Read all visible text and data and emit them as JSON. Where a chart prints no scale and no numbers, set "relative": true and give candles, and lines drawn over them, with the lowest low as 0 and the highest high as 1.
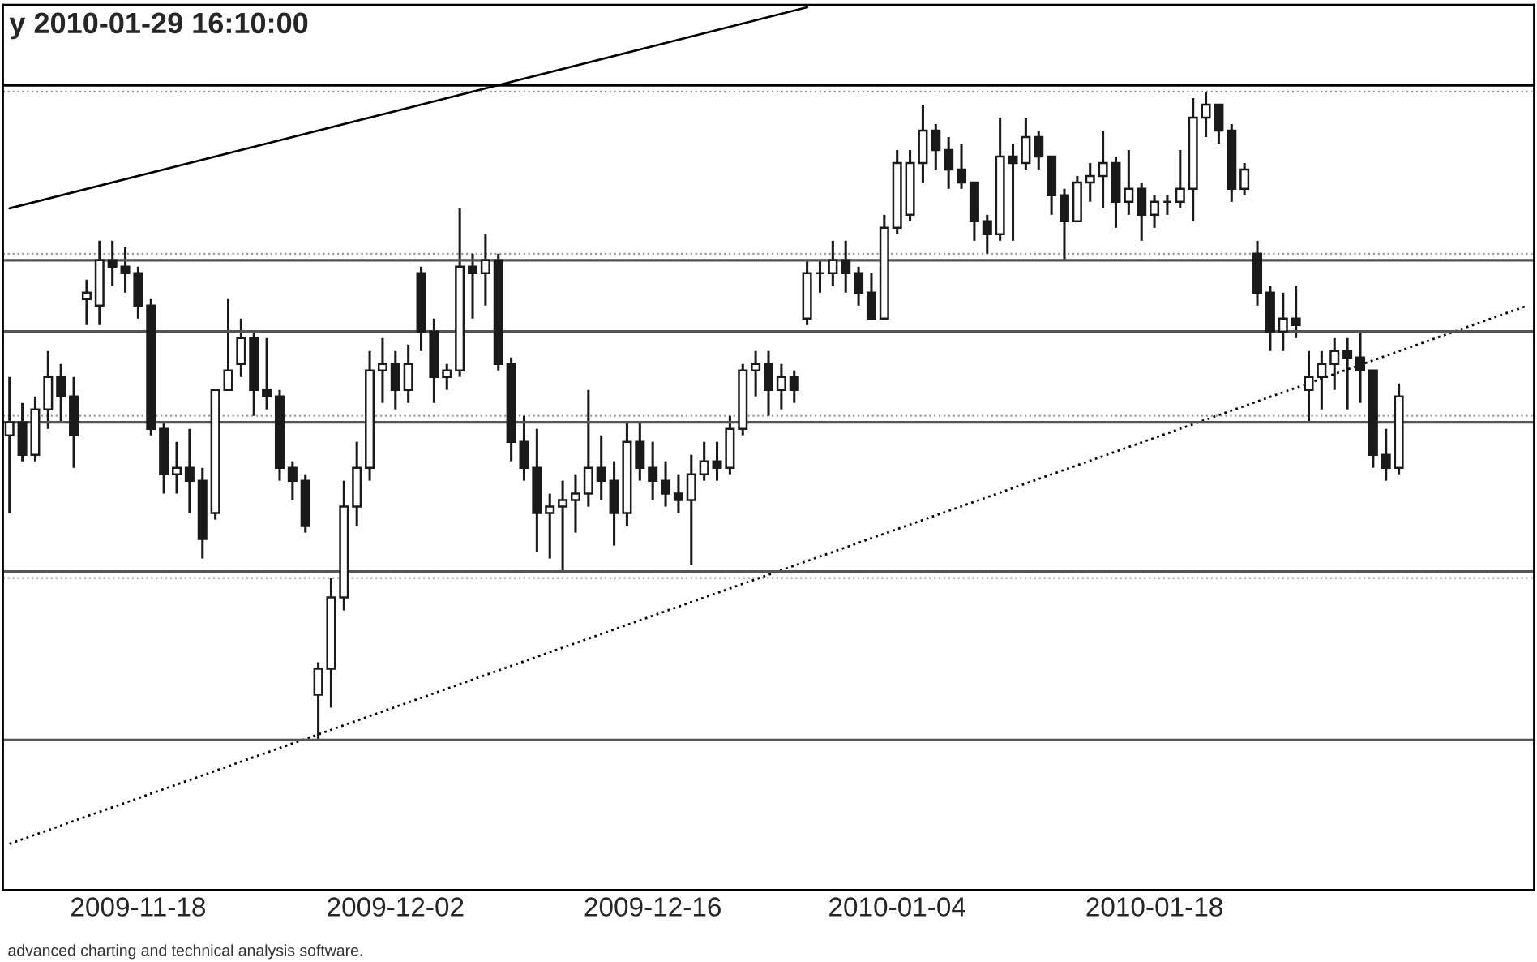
{
  "chart_data": {
    "type": "candlestick",
    "title": "y 2010-01-29 16:10:00",
    "relative": true,
    "color": "#1a1a1a",
    "grid": "y",
    "tick_labels": "x",
    "annotations": [
      "advanced charting and technical analysis software."
    ],
    "categories": [
      null,
      null,
      null,
      null,
      null,
      null,
      null,
      null,
      null,
      null,
      "2009-11-18",
      null,
      null,
      null,
      null,
      null,
      null,
      null,
      null,
      null,
      null,
      null,
      null,
      null,
      null,
      null,
      null,
      null,
      null,
      null,
      "2009-12-02",
      null,
      null,
      null,
      null,
      null,
      null,
      null,
      null,
      null,
      null,
      null,
      null,
      null,
      null,
      null,
      null,
      null,
      null,
      null,
      "2009-12-16",
      null,
      null,
      null,
      null,
      null,
      null,
      null,
      null,
      null,
      null,
      null,
      null,
      null,
      null,
      null,
      null,
      null,
      null,
      "2010-01-04",
      null,
      null,
      null,
      null,
      null,
      null,
      null,
      null,
      null,
      null,
      null,
      null,
      null,
      null,
      null,
      null,
      null,
      null,
      null,
      "2010-01-18",
      null,
      null,
      null,
      null,
      null,
      null,
      null,
      null,
      null,
      null,
      null,
      null,
      null,
      null,
      null,
      null,
      null,
      null,
      null,
      null,
      null,
      null,
      null,
      null,
      null,
      null,
      null,
      null,
      null
    ],
    "ohlc": [
      [
        0.47,
        0.56,
        0.35,
        0.49
      ],
      [
        0.49,
        0.52,
        0.43,
        0.44
      ],
      [
        0.44,
        0.53,
        0.43,
        0.51
      ],
      [
        0.51,
        0.6,
        0.48,
        0.56
      ],
      [
        0.56,
        0.58,
        0.49,
        0.53
      ],
      [
        0.53,
        0.56,
        0.42,
        0.47
      ],
      [
        0.68,
        0.71,
        0.64,
        0.69
      ],
      [
        0.67,
        0.77,
        0.64,
        0.74
      ],
      [
        0.74,
        0.77,
        0.7,
        0.73
      ],
      [
        0.73,
        0.76,
        0.69,
        0.72
      ],
      [
        0.72,
        0.73,
        0.65,
        0.67
      ],
      [
        0.67,
        0.68,
        0.47,
        0.48
      ],
      [
        0.48,
        0.49,
        0.38,
        0.41
      ],
      [
        0.41,
        0.46,
        0.38,
        0.42
      ],
      [
        0.42,
        0.48,
        0.35,
        0.4
      ],
      [
        0.4,
        0.42,
        0.28,
        0.31
      ],
      [
        0.35,
        0.54,
        0.34,
        0.54
      ],
      [
        0.54,
        0.68,
        0.54,
        0.57
      ],
      [
        0.58,
        0.65,
        0.56,
        0.62
      ],
      [
        0.62,
        0.63,
        0.5,
        0.54
      ],
      [
        0.54,
        0.62,
        0.51,
        0.53
      ],
      [
        0.53,
        0.54,
        0.4,
        0.42
      ],
      [
        0.42,
        0.43,
        0.37,
        0.4
      ],
      [
        0.4,
        0.41,
        0.32,
        0.33
      ],
      [
        0.07,
        0.12,
        0.0,
        0.11
      ],
      [
        0.11,
        0.25,
        0.05,
        0.22
      ],
      [
        0.22,
        0.4,
        0.2,
        0.36
      ],
      [
        0.36,
        0.46,
        0.33,
        0.42
      ],
      [
        0.42,
        0.6,
        0.4,
        0.57
      ],
      [
        0.57,
        0.62,
        0.52,
        0.58
      ],
      [
        0.58,
        0.6,
        0.51,
        0.54
      ],
      [
        0.54,
        0.61,
        0.52,
        0.58
      ],
      [
        0.72,
        0.73,
        0.6,
        0.63
      ],
      [
        0.63,
        0.65,
        0.52,
        0.56
      ],
      [
        0.56,
        0.58,
        0.54,
        0.57
      ],
      [
        0.57,
        0.82,
        0.56,
        0.73
      ],
      [
        0.73,
        0.75,
        0.65,
        0.72
      ],
      [
        0.72,
        0.78,
        0.67,
        0.74
      ],
      [
        0.74,
        0.75,
        0.57,
        0.58
      ],
      [
        0.58,
        0.59,
        0.43,
        0.46
      ],
      [
        0.46,
        0.5,
        0.4,
        0.42
      ],
      [
        0.42,
        0.48,
        0.29,
        0.35
      ],
      [
        0.35,
        0.38,
        0.28,
        0.36
      ],
      [
        0.36,
        0.4,
        0.26,
        0.37
      ],
      [
        0.37,
        0.41,
        0.32,
        0.38
      ],
      [
        0.38,
        0.54,
        0.36,
        0.42
      ],
      [
        0.42,
        0.47,
        0.37,
        0.4
      ],
      [
        0.4,
        0.43,
        0.3,
        0.35
      ],
      [
        0.35,
        0.49,
        0.33,
        0.46
      ],
      [
        0.46,
        0.49,
        0.4,
        0.42
      ],
      [
        0.42,
        0.46,
        0.37,
        0.4
      ],
      [
        0.4,
        0.43,
        0.36,
        0.38
      ],
      [
        0.38,
        0.41,
        0.35,
        0.37
      ],
      [
        0.37,
        0.44,
        0.27,
        0.41
      ],
      [
        0.41,
        0.46,
        0.4,
        0.43
      ],
      [
        0.43,
        0.46,
        0.4,
        0.42
      ],
      [
        0.42,
        0.5,
        0.41,
        0.48
      ],
      [
        0.48,
        0.58,
        0.47,
        0.57
      ],
      [
        0.57,
        0.6,
        0.53,
        0.58
      ],
      [
        0.58,
        0.6,
        0.5,
        0.54
      ],
      [
        0.54,
        0.58,
        0.51,
        0.56
      ],
      [
        0.56,
        0.57,
        0.52,
        0.54
      ],
      [
        0.65,
        0.74,
        0.64,
        0.72
      ],
      [
        0.72,
        0.74,
        0.69,
        0.72
      ],
      [
        0.72,
        0.77,
        0.7,
        0.74
      ],
      [
        0.74,
        0.77,
        0.69,
        0.72
      ],
      [
        0.72,
        0.73,
        0.67,
        0.69
      ],
      [
        0.69,
        0.72,
        0.65,
        0.65
      ],
      [
        0.65,
        0.81,
        0.65,
        0.79
      ],
      [
        0.79,
        0.91,
        0.78,
        0.89
      ],
      [
        0.81,
        0.91,
        0.8,
        0.89
      ],
      [
        0.89,
        0.98,
        0.86,
        0.94
      ],
      [
        0.94,
        0.95,
        0.88,
        0.91
      ],
      [
        0.91,
        0.93,
        0.85,
        0.88
      ],
      [
        0.88,
        0.92,
        0.85,
        0.86
      ],
      [
        0.86,
        0.86,
        0.77,
        0.8
      ],
      [
        0.8,
        0.81,
        0.75,
        0.78
      ],
      [
        0.78,
        0.96,
        0.77,
        0.9
      ],
      [
        0.9,
        0.92,
        0.77,
        0.89
      ],
      [
        0.89,
        0.96,
        0.88,
        0.93
      ],
      [
        0.93,
        0.94,
        0.88,
        0.9
      ],
      [
        0.9,
        0.9,
        0.81,
        0.84
      ],
      [
        0.84,
        0.85,
        0.74,
        0.8
      ],
      [
        0.8,
        0.87,
        0.8,
        0.86
      ],
      [
        0.86,
        0.89,
        0.83,
        0.87
      ],
      [
        0.87,
        0.94,
        0.82,
        0.89
      ],
      [
        0.89,
        0.9,
        0.79,
        0.83
      ],
      [
        0.83,
        0.91,
        0.81,
        0.85
      ],
      [
        0.85,
        0.86,
        0.77,
        0.81
      ],
      [
        0.81,
        0.84,
        0.79,
        0.83
      ],
      [
        0.83,
        0.84,
        0.81,
        0.83
      ],
      [
        0.83,
        0.91,
        0.82,
        0.85
      ],
      [
        0.85,
        0.99,
        0.8,
        0.96
      ],
      [
        0.96,
        1.0,
        0.93,
        0.98
      ],
      [
        0.98,
        0.98,
        0.92,
        0.94
      ],
      [
        0.94,
        0.95,
        0.83,
        0.85
      ],
      [
        0.85,
        0.89,
        0.84,
        0.88
      ],
      [
        0.75,
        0.77,
        0.67,
        0.69
      ],
      [
        0.69,
        0.7,
        0.6,
        0.63
      ],
      [
        0.63,
        0.69,
        0.6,
        0.65
      ],
      [
        0.65,
        0.7,
        0.62,
        0.64
      ],
      [
        0.54,
        0.6,
        0.49,
        0.56
      ],
      [
        0.56,
        0.6,
        0.51,
        0.58
      ],
      [
        0.58,
        0.62,
        0.54,
        0.6
      ],
      [
        0.6,
        0.62,
        0.51,
        0.59
      ],
      [
        0.59,
        0.63,
        0.52,
        0.57
      ],
      [
        0.57,
        0.57,
        0.42,
        0.44
      ],
      [
        0.44,
        0.48,
        0.4,
        0.42
      ],
      [
        0.42,
        0.55,
        0.41,
        0.53
      ],
      null,
      null,
      null,
      null,
      null,
      null,
      null,
      null,
      null,
      null
    ],
    "series": [
      {
        "type": "line",
        "color": "#000000",
        "line_style": "solid",
        "values": [
          0.82,
          null,
          null,
          null,
          null,
          null,
          null,
          null,
          null,
          null,
          null,
          null,
          null,
          null,
          null,
          null,
          null,
          null,
          null,
          null,
          null,
          null,
          null,
          null,
          null,
          null,
          null,
          null,
          null,
          null,
          null,
          null,
          null,
          null,
          null,
          null,
          null,
          null,
          null,
          null,
          null,
          null,
          null,
          null,
          null,
          null,
          null,
          null,
          null,
          null,
          null,
          null,
          null,
          null,
          null,
          null,
          null,
          null,
          null,
          null,
          null,
          null,
          1.13,
          null,
          null,
          null,
          null,
          null,
          null,
          null,
          null,
          null,
          null,
          null,
          null,
          null,
          null,
          null,
          null,
          null,
          null,
          null,
          null,
          null,
          null,
          null,
          null,
          null,
          null,
          null,
          null,
          null,
          null,
          null,
          null,
          null,
          null,
          null,
          null,
          null,
          null,
          null,
          null,
          null,
          null,
          null,
          null,
          null,
          null,
          null,
          null,
          null,
          null,
          null,
          null,
          null,
          null,
          null,
          null
        ]
      },
      {
        "type": "line",
        "color": "#000000",
        "line_style": "dotted",
        "values": [
          -0.16,
          null,
          null,
          null,
          null,
          null,
          null,
          null,
          null,
          null,
          null,
          null,
          null,
          null,
          null,
          null,
          null,
          null,
          null,
          null,
          null,
          null,
          null,
          null,
          null,
          null,
          null,
          null,
          null,
          null,
          null,
          null,
          null,
          null,
          null,
          null,
          null,
          null,
          null,
          null,
          null,
          null,
          null,
          null,
          null,
          null,
          null,
          null,
          null,
          null,
          null,
          null,
          null,
          null,
          null,
          null,
          null,
          null,
          null,
          null,
          null,
          null,
          null,
          null,
          null,
          null,
          null,
          null,
          null,
          null,
          null,
          null,
          null,
          null,
          null,
          null,
          null,
          null,
          null,
          null,
          null,
          null,
          null,
          null,
          null,
          null,
          null,
          null,
          null,
          null,
          null,
          null,
          null,
          null,
          null,
          null,
          null,
          null,
          null,
          null,
          null,
          null,
          null,
          null,
          null,
          null,
          null,
          null,
          null,
          null,
          null,
          null,
          null,
          null,
          null,
          null,
          null,
          null,
          0.67
        ]
      }
    ],
    "ref_lines": [
      {
        "axis": "y",
        "value": 1.01,
        "color": "#000000"
      },
      {
        "axis": "y",
        "value": 0.74,
        "color": "#555555"
      },
      {
        "axis": "y",
        "value": 0.63,
        "color": "#555555"
      },
      {
        "axis": "y",
        "value": 0.49,
        "color": "#555555"
      },
      {
        "axis": "y",
        "value": 0.26,
        "color": "#555555"
      },
      {
        "axis": "y",
        "value": 0.0,
        "color": "#555555"
      }
    ]
  }
}
